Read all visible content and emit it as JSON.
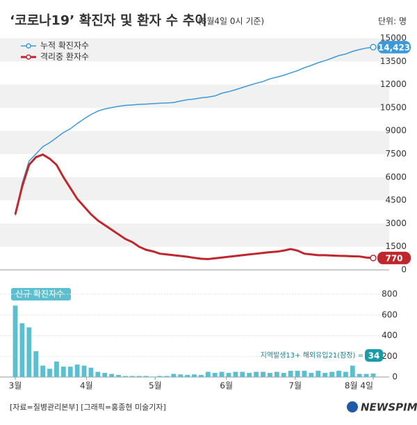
{
  "chart_data": [
    {
      "type": "line",
      "title": "‘코로나19’ 확진자 및 환자 수 추이",
      "subtitle": "(8월4일 0시 기준)",
      "unit": "단위: 명",
      "x": [
        0,
        3,
        6,
        9,
        12,
        15,
        18,
        21,
        24,
        27,
        30,
        33,
        36,
        39,
        42,
        45,
        48,
        51,
        54,
        57,
        60,
        63,
        66,
        69,
        72,
        75,
        78,
        81,
        84,
        87,
        90,
        93,
        96,
        99,
        102,
        105,
        108,
        111,
        114,
        117,
        120,
        123,
        126,
        129,
        132,
        135,
        138,
        141,
        144,
        147,
        150,
        153,
        156
      ],
      "xlim": [
        0,
        156
      ],
      "ylim": [
        0,
        15000
      ],
      "yticks": [
        0,
        1500,
        3000,
        4500,
        6000,
        7500,
        9000,
        10500,
        12000,
        13500,
        15000
      ],
      "legend": "top-left",
      "series": [
        {
          "name": "누적 확진자수",
          "color": "#3a9ad9",
          "values": [
            3526,
            5621,
            7041,
            7513,
            7979,
            8236,
            8565,
            8897,
            9137,
            9478,
            9786,
            10062,
            10284,
            10423,
            10512,
            10591,
            10653,
            10683,
            10718,
            10738,
            10765,
            10793,
            10810,
            10840,
            10936,
            11018,
            11065,
            11142,
            11190,
            11265,
            11441,
            11541,
            11668,
            11814,
            11947,
            12085,
            12198,
            12373,
            12484,
            12602,
            12757,
            12904,
            13091,
            13244,
            13417,
            13551,
            13711,
            13879,
            13979,
            14150,
            14269,
            14366,
            14423
          ],
          "end_label": {
            "value": 14423,
            "label": "14,423"
          }
        },
        {
          "name": "격리중 환자수",
          "color": "#c0272d",
          "values": [
            3600,
            5400,
            6800,
            7300,
            7470,
            7200,
            6800,
            6000,
            5300,
            4600,
            4100,
            3600,
            3200,
            2900,
            2600,
            2300,
            2000,
            1800,
            1500,
            1300,
            1200,
            1050,
            1000,
            950,
            900,
            850,
            780,
            720,
            700,
            750,
            800,
            850,
            900,
            950,
            1000,
            1050,
            1100,
            1150,
            1180,
            1250,
            1350,
            1250,
            1050,
            1000,
            950,
            950,
            930,
            910,
            900,
            880,
            870,
            800,
            770
          ],
          "end_label": {
            "value": 770,
            "label": "770"
          }
        }
      ]
    },
    {
      "type": "bar",
      "title": "신규 확진자수",
      "color": "#5bbfcf",
      "x": [
        0,
        3,
        6,
        9,
        12,
        15,
        18,
        21,
        24,
        27,
        30,
        33,
        36,
        39,
        42,
        45,
        48,
        51,
        54,
        57,
        60,
        63,
        66,
        69,
        72,
        75,
        78,
        81,
        84,
        87,
        90,
        93,
        96,
        99,
        102,
        105,
        108,
        111,
        114,
        117,
        120,
        123,
        126,
        129,
        132,
        135,
        138,
        141,
        144,
        147,
        150,
        153,
        156
      ],
      "values": [
        690,
        520,
        480,
        250,
        110,
        80,
        150,
        100,
        100,
        120,
        110,
        90,
        50,
        40,
        30,
        20,
        10,
        10,
        10,
        10,
        4,
        10,
        10,
        30,
        25,
        20,
        25,
        20,
        50,
        40,
        50,
        40,
        50,
        50,
        40,
        50,
        50,
        40,
        50,
        40,
        60,
        60,
        60,
        40,
        60,
        40,
        50,
        60,
        50,
        110,
        30,
        30,
        34
      ],
      "xlim": [
        0,
        156
      ],
      "xticks": [
        {
          "value": 0,
          "label": "3월"
        },
        {
          "value": 31,
          "label": "4월"
        },
        {
          "value": 61,
          "label": "5월"
        },
        {
          "value": 92,
          "label": "6월"
        },
        {
          "value": 122,
          "label": "7월"
        },
        {
          "value": 156,
          "label": "8월 4일"
        }
      ],
      "ylim": [
        0,
        800
      ],
      "yticks": [
        0,
        200,
        400,
        600,
        800
      ],
      "annotation": "지역발생13+ 해외유입21(잠정) =",
      "end_label": {
        "value": 34,
        "label": "34"
      }
    }
  ],
  "source": "[자료=질병관리본부] [그래픽=홍종현 미술기자]",
  "logo": "NEWSPIM"
}
